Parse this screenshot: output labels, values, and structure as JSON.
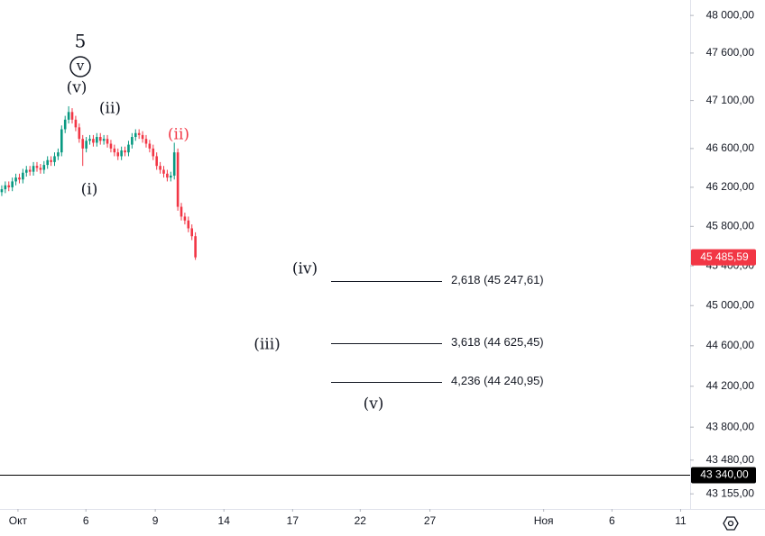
{
  "chart_data": {
    "type": "candlestick",
    "x": [
      0.5,
      1.5,
      2.5,
      3.5,
      4.5,
      5.5,
      6.5,
      7.5,
      8.5,
      9.5,
      10.5,
      11.5,
      12.5,
      13.5,
      14.5,
      15.5,
      16.5,
      17.5,
      18.5,
      19.5,
      20.5,
      21.5,
      22.5,
      23.5,
      24.5,
      25.5,
      26.5,
      27.5,
      28.5,
      29.5,
      30.5,
      31.5,
      32.5,
      33.5,
      34.5,
      35.5,
      36.5,
      37.5,
      38.5,
      39.5,
      40.5,
      41.5,
      42.5,
      43.5,
      44.5,
      45.5,
      46.5,
      47.5,
      48.5,
      49.5,
      50.5,
      51.5,
      52.5,
      53.5,
      54.5,
      55.5
    ],
    "open": [
      46150,
      46180,
      46220,
      46200,
      46260,
      46300,
      46280,
      46350,
      46380,
      46360,
      46420,
      46400,
      46380,
      46430,
      46480,
      46460,
      46520,
      46560,
      46800,
      46900,
      46980,
      46900,
      46820,
      46700,
      46600,
      46680,
      46700,
      46660,
      46720,
      46680,
      46700,
      46650,
      46600,
      46560,
      46520,
      46580,
      46560,
      46640,
      46720,
      46760,
      46740,
      46700,
      46650,
      46600,
      46520,
      46420,
      46380,
      46340,
      46300,
      46320,
      46560,
      46000,
      45900,
      45860,
      45780,
      45700
    ],
    "high": [
      46220,
      46260,
      46260,
      46300,
      46340,
      46340,
      46390,
      46420,
      46420,
      46460,
      46460,
      46440,
      46470,
      46520,
      46520,
      46560,
      46600,
      46840,
      46940,
      47040,
      47020,
      46940,
      46860,
      46740,
      46720,
      46740,
      46740,
      46760,
      46760,
      46740,
      46740,
      46690,
      46640,
      46600,
      46620,
      46620,
      46680,
      46760,
      46800,
      46800,
      46780,
      46740,
      46690,
      46640,
      46560,
      46460,
      46420,
      46380,
      46360,
      46660,
      46600,
      46040,
      45940,
      45900,
      45820,
      45740
    ],
    "low": [
      46110,
      46140,
      46160,
      46160,
      46220,
      46240,
      46240,
      46310,
      46320,
      46320,
      46360,
      46340,
      46340,
      46390,
      46420,
      46420,
      46480,
      46520,
      46760,
      46860,
      46860,
      46780,
      46660,
      46420,
      46560,
      46640,
      46620,
      46620,
      46640,
      46640,
      46610,
      46560,
      46520,
      46480,
      46480,
      46520,
      46520,
      46600,
      46680,
      46700,
      46660,
      46610,
      46560,
      46480,
      46380,
      46340,
      46300,
      46260,
      46260,
      46280,
      45960,
      45860,
      45820,
      45740,
      45660,
      45460
    ],
    "close": [
      46180,
      46220,
      46200,
      46260,
      46300,
      46280,
      46350,
      46380,
      46360,
      46420,
      46400,
      46380,
      46430,
      46480,
      46460,
      46520,
      46560,
      46800,
      46900,
      46980,
      46900,
      46820,
      46700,
      46600,
      46680,
      46700,
      46660,
      46720,
      46680,
      46700,
      46650,
      46600,
      46560,
      46520,
      46580,
      46560,
      46640,
      46720,
      46760,
      46740,
      46700,
      46650,
      46600,
      46520,
      46420,
      46380,
      46340,
      46300,
      46320,
      46560,
      46000,
      45900,
      45860,
      45780,
      45700,
      45485.59
    ],
    "up_color": "#089981",
    "down_color": "#f23645",
    "xlim": [
      0,
      196
    ],
    "xticks": [
      {
        "value": 5.1,
        "label": "Окт"
      },
      {
        "value": 24.4,
        "label": "6"
      },
      {
        "value": 44.1,
        "label": "9"
      },
      {
        "value": 63.6,
        "label": "14"
      },
      {
        "value": 83.1,
        "label": "17"
      },
      {
        "value": 102.3,
        "label": "22"
      },
      {
        "value": 122.1,
        "label": "27"
      },
      {
        "value": 154.4,
        "label": "Ноя"
      },
      {
        "value": 173.8,
        "label": "6"
      },
      {
        "value": 193.3,
        "label": "11"
      }
    ],
    "ylim": [
      43010,
      48165
    ],
    "log_scale": true,
    "yticks": [
      {
        "value": 48000,
        "label": "48 000,00"
      },
      {
        "value": 47600,
        "label": "47 600,00"
      },
      {
        "value": 47100,
        "label": "47 100,00"
      },
      {
        "value": 46600,
        "label": "46 600,00"
      },
      {
        "value": 46200,
        "label": "46 200,00"
      },
      {
        "value": 45800,
        "label": "45 800,00"
      },
      {
        "value": 45400,
        "label": "45 400,00"
      },
      {
        "value": 45000,
        "label": "45 000,00"
      },
      {
        "value": 44600,
        "label": "44 600,00"
      },
      {
        "value": 44200,
        "label": "44 200,00"
      },
      {
        "value": 43800,
        "label": "43 800,00"
      },
      {
        "value": 43480,
        "label": "43 480,00"
      },
      {
        "value": 43155,
        "label": "43 155,00"
      }
    ],
    "price_marker": {
      "value": 45485.59,
      "label": "45 485,59",
      "color": "#f23645"
    },
    "level_line": {
      "value": 43340,
      "label": "43 340,00",
      "color": "#000000"
    },
    "fib_levels": [
      {
        "value": 45247.61,
        "label": "2,618 (45 247,61)"
      },
      {
        "value": 44625.45,
        "label": "3,618 (44 625,45)"
      },
      {
        "value": 44240.95,
        "label": "4,236 (44 240,95)"
      }
    ],
    "wave_labels": [
      {
        "text": "5",
        "color": "#131722"
      },
      {
        "text": "v",
        "color": "#131722"
      },
      {
        "text": "(v)",
        "color": "#131722"
      },
      {
        "text": "(ii)",
        "color": "#131722"
      },
      {
        "text": "(i)",
        "color": "#131722"
      },
      {
        "text": "(ii)",
        "color": "#f23645"
      },
      {
        "text": "(iv)",
        "color": "#131722"
      },
      {
        "text": "(iii)",
        "color": "#131722"
      },
      {
        "text": "(v)",
        "color": "#131722"
      }
    ]
  }
}
